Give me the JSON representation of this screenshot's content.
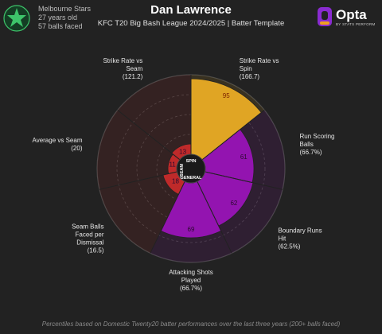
{
  "team": {
    "name": "Melbourne Stars",
    "age": "27 years old",
    "balls": "57 balls faced",
    "logo_icon": "star-icon",
    "logo_color": "#3dc46a"
  },
  "player": {
    "name": "Dan Lawrence",
    "subtitle": "KFC T20 Big Bash League 2024/2025 | Batter Template"
  },
  "brand": {
    "name": "Opta",
    "sub": "BY STATS PERFORM",
    "icon": "opta-logo-icon"
  },
  "colors": {
    "spin": "#e0a524",
    "general": "#9314b0",
    "seam": "#bf2a2a",
    "background": "#222222"
  },
  "footnote": "Percentiles based on Domestic Twenty20 batter performances over the last three years (200+ balls faced)",
  "chart_data": {
    "type": "polar-bar",
    "scale": [
      0,
      100
    ],
    "groups": [
      "SPIN",
      "GENERAL",
      "SEAM"
    ],
    "metrics": [
      {
        "label": "Strike Rate vs Spin",
        "value_label": "(166.7)",
        "percentile": 95,
        "group": "SPIN"
      },
      {
        "label": "Run Scoring Balls",
        "value_label": "(66.7%)",
        "percentile": 61,
        "group": "GENERAL"
      },
      {
        "label": "Boundary Runs Hit",
        "value_label": "(62.5%)",
        "percentile": 62,
        "group": "GENERAL"
      },
      {
        "label": "Attacking Shots Played",
        "value_label": "(66.7%)",
        "percentile": 69,
        "group": "GENERAL"
      },
      {
        "label": "Seam Balls Faced per Dismissal",
        "value_label": "(16.5)",
        "percentile": 18,
        "group": "SEAM"
      },
      {
        "label": "Average vs Seam",
        "value_label": "(20)",
        "percentile": 11,
        "group": "SEAM"
      },
      {
        "label": "Strike Rate vs Seam",
        "value_label": "(121.2)",
        "percentile": 13,
        "group": "SEAM"
      }
    ]
  }
}
